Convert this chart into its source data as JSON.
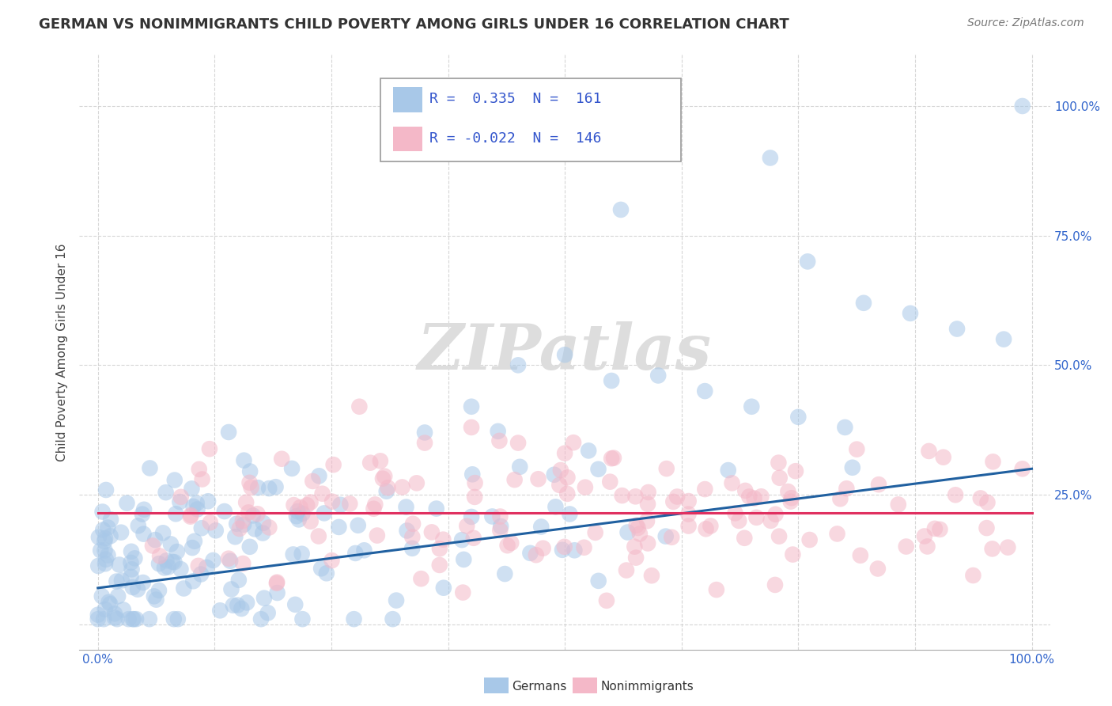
{
  "title": "GERMAN VS NONIMMIGRANTS CHILD POVERTY AMONG GIRLS UNDER 16 CORRELATION CHART",
  "source": "Source: ZipAtlas.com",
  "ylabel": "Child Poverty Among Girls Under 16",
  "watermark": "ZIPatlas",
  "xlim": [
    0.0,
    1.0
  ],
  "ylim": [
    -0.05,
    1.1
  ],
  "x_ticks": [
    0.0,
    0.125,
    0.25,
    0.375,
    0.5,
    0.625,
    0.75,
    0.875,
    1.0
  ],
  "x_ticklabels": [
    "0.0%",
    "",
    "",
    "",
    "",
    "",
    "",
    "",
    "100.0%"
  ],
  "y_ticks": [
    0.0,
    0.25,
    0.5,
    0.75,
    1.0
  ],
  "y_ticklabels": [
    "",
    "25.0%",
    "50.0%",
    "75.0%",
    "100.0%"
  ],
  "legend_r1": "R =  0.335  N =  161",
  "legend_r2": "R = -0.022  N =  146",
  "legend_label1": "Germans",
  "legend_label2": "Nonimmigrants",
  "color_blue": "#a8c8e8",
  "color_pink": "#f4b8c8",
  "line_blue": "#2060a0",
  "line_pink": "#e03060",
  "r1": 0.335,
  "n1": 161,
  "r2": -0.022,
  "n2": 146,
  "title_fontsize": 13,
  "source_fontsize": 10,
  "axis_label_fontsize": 11,
  "tick_fontsize": 11,
  "legend_fontsize": 13,
  "background_color": "#ffffff",
  "grid_color": "#cccccc",
  "blue_line_y0": 0.07,
  "blue_line_y1": 0.3,
  "pink_line_y0": 0.215,
  "pink_line_y1": 0.215
}
